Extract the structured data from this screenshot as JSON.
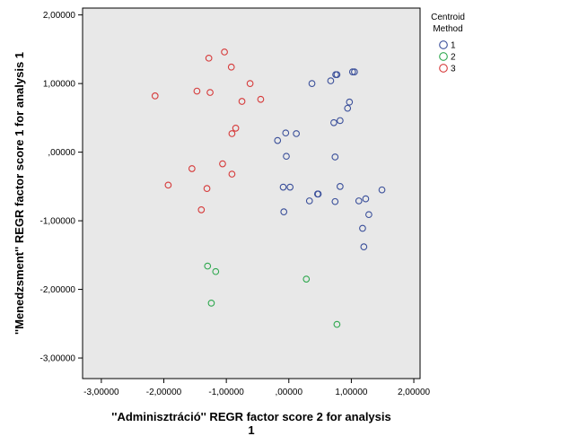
{
  "chart_data": {
    "type": "scatter",
    "xlabel_lines": [
      "''Adminisztráció'' REGR factor score   2 for analysis",
      "1"
    ],
    "ylabel": "''Menedzsment'' REGR factor score   1 for analysis 1",
    "xlim": [
      -3.3,
      2.1
    ],
    "ylim": [
      -3.3,
      2.1
    ],
    "x_ticks": [
      -3,
      -2,
      -1,
      0,
      1,
      2
    ],
    "x_tick_labels": [
      "-3,00000",
      "-2,00000",
      "-1,00000",
      ",00000",
      "1,00000",
      "2,00000"
    ],
    "y_ticks": [
      2,
      1,
      0,
      -1,
      -2,
      -3
    ],
    "y_tick_labels": [
      "2,00000",
      "1,00000",
      ",00000",
      "-1,00000",
      "-2,00000",
      "-3,00000"
    ],
    "grid": false,
    "plot_background": "#e8e8e8",
    "legend": {
      "title_lines": [
        "Centroid",
        "Method"
      ],
      "placement": "right",
      "entries": [
        "1",
        "2",
        "3"
      ]
    },
    "series": [
      {
        "name": "1",
        "color": "#3a4f9a",
        "points": [
          [
            1.02,
            1.17
          ],
          [
            1.05,
            1.17
          ],
          [
            0.77,
            1.13
          ],
          [
            0.75,
            1.13
          ],
          [
            0.37,
            1.0
          ],
          [
            0.67,
            1.04
          ],
          [
            0.97,
            0.73
          ],
          [
            0.94,
            0.64
          ],
          [
            0.82,
            0.46
          ],
          [
            0.72,
            0.43
          ],
          [
            -0.05,
            0.28
          ],
          [
            0.12,
            0.27
          ],
          [
            -0.18,
            0.17
          ],
          [
            -0.04,
            -0.06
          ],
          [
            0.74,
            -0.07
          ],
          [
            -0.09,
            -0.51
          ],
          [
            0.02,
            -0.51
          ],
          [
            0.82,
            -0.5
          ],
          [
            1.49,
            -0.55
          ],
          [
            0.46,
            -0.61
          ],
          [
            0.47,
            -0.61
          ],
          [
            0.33,
            -0.71
          ],
          [
            0.74,
            -0.72
          ],
          [
            1.12,
            -0.71
          ],
          [
            1.23,
            -0.68
          ],
          [
            -0.08,
            -0.87
          ],
          [
            1.28,
            -0.91
          ],
          [
            1.18,
            -1.11
          ],
          [
            1.2,
            -1.38
          ]
        ]
      },
      {
        "name": "2",
        "color": "#2fa84f",
        "points": [
          [
            -1.3,
            -1.66
          ],
          [
            -1.17,
            -1.74
          ],
          [
            0.28,
            -1.85
          ],
          [
            -1.24,
            -2.2
          ],
          [
            0.77,
            -2.51
          ]
        ]
      },
      {
        "name": "3",
        "color": "#d63a3a",
        "points": [
          [
            -1.03,
            1.46
          ],
          [
            -1.28,
            1.37
          ],
          [
            -0.92,
            1.24
          ],
          [
            -2.14,
            0.82
          ],
          [
            -1.47,
            0.89
          ],
          [
            -1.26,
            0.87
          ],
          [
            -0.62,
            1.0
          ],
          [
            -0.75,
            0.74
          ],
          [
            -0.45,
            0.77
          ],
          [
            -0.85,
            0.35
          ],
          [
            -0.91,
            0.27
          ],
          [
            -1.55,
            -0.24
          ],
          [
            -1.06,
            -0.17
          ],
          [
            -0.91,
            -0.32
          ],
          [
            -1.93,
            -0.48
          ],
          [
            -1.31,
            -0.53
          ],
          [
            -1.4,
            -0.84
          ]
        ]
      }
    ]
  }
}
